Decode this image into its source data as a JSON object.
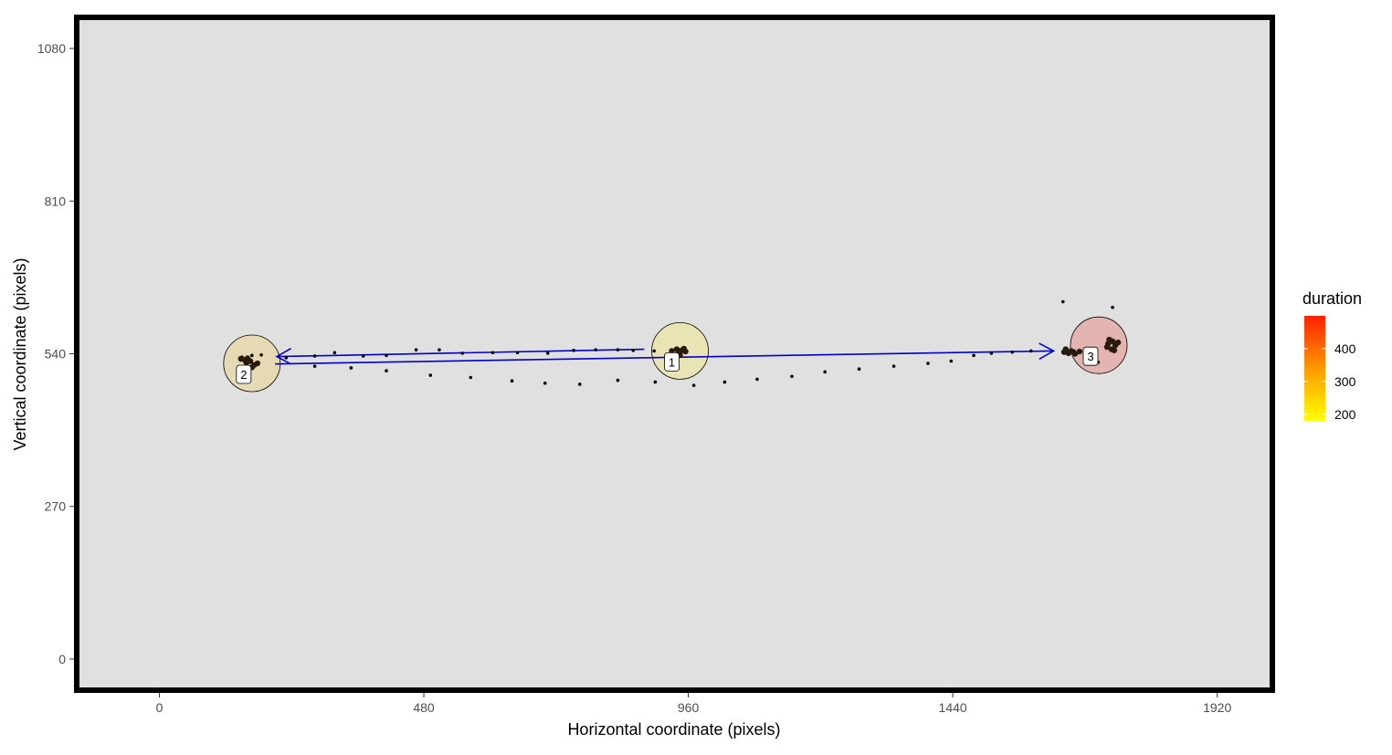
{
  "chart_data": {
    "type": "scatter",
    "title": "",
    "xlabel": "Horizontal coordinate (pixels)",
    "ylabel": "Vertical coordinate (pixels)",
    "xlim": [
      -150,
      2020
    ],
    "ylim": [
      -55,
      1135
    ],
    "x_ticks": [
      0,
      480,
      960,
      1440,
      1920
    ],
    "y_ticks": [
      0,
      270,
      540,
      810,
      1080
    ],
    "grid": false,
    "background": "#e0e0e0",
    "legend": {
      "title": "duration",
      "placement": "right",
      "min": 180,
      "max": 500,
      "ticks": [
        200,
        300,
        400
      ],
      "color_low": "#ffff00",
      "color_high": "#ff2000"
    },
    "fixations": [
      {
        "label": "1",
        "x": 945,
        "y": 545,
        "duration": 255,
        "fill": "#e8e4b4"
      },
      {
        "label": "2",
        "x": 168,
        "y": 523,
        "duration": 275,
        "fill": "#e6dab4"
      },
      {
        "label": "3",
        "x": 1705,
        "y": 555,
        "duration": 480,
        "fill": "#e4b4b0"
      }
    ],
    "saccades": [
      {
        "from": 1,
        "to": 2,
        "x1": 880,
        "y1": 548,
        "x2": 213,
        "y2": 535,
        "color": "#0000cc"
      },
      {
        "from": 2,
        "to": 3,
        "x1": 210,
        "y1": 522,
        "x2": 1623,
        "y2": 545,
        "color": "#0000cc"
      }
    ],
    "points": [
      {
        "x": 230,
        "y": 533
      },
      {
        "x": 282,
        "y": 536
      },
      {
        "x": 282,
        "y": 518
      },
      {
        "x": 318,
        "y": 542
      },
      {
        "x": 348,
        "y": 515
      },
      {
        "x": 370,
        "y": 536
      },
      {
        "x": 412,
        "y": 537
      },
      {
        "x": 412,
        "y": 510
      },
      {
        "x": 466,
        "y": 547
      },
      {
        "x": 492,
        "y": 502
      },
      {
        "x": 508,
        "y": 547
      },
      {
        "x": 550,
        "y": 541
      },
      {
        "x": 565,
        "y": 498
      },
      {
        "x": 605,
        "y": 542
      },
      {
        "x": 640,
        "y": 492
      },
      {
        "x": 650,
        "y": 542
      },
      {
        "x": 700,
        "y": 488
      },
      {
        "x": 705,
        "y": 541
      },
      {
        "x": 752,
        "y": 546
      },
      {
        "x": 763,
        "y": 486
      },
      {
        "x": 792,
        "y": 547
      },
      {
        "x": 832,
        "y": 547
      },
      {
        "x": 832,
        "y": 493
      },
      {
        "x": 860,
        "y": 546
      },
      {
        "x": 898,
        "y": 545
      },
      {
        "x": 900,
        "y": 490
      },
      {
        "x": 970,
        "y": 484
      },
      {
        "x": 1026,
        "y": 490
      },
      {
        "x": 1085,
        "y": 495
      },
      {
        "x": 1148,
        "y": 500
      },
      {
        "x": 1208,
        "y": 508
      },
      {
        "x": 1270,
        "y": 513
      },
      {
        "x": 1333,
        "y": 518
      },
      {
        "x": 1395,
        "y": 523
      },
      {
        "x": 1437,
        "y": 527
      },
      {
        "x": 1478,
        "y": 537
      },
      {
        "x": 1510,
        "y": 541
      },
      {
        "x": 1548,
        "y": 543
      },
      {
        "x": 1582,
        "y": 545
      },
      {
        "x": 1640,
        "y": 632
      },
      {
        "x": 1730,
        "y": 622
      },
      {
        "x": 1682,
        "y": 542
      },
      {
        "x": 1704,
        "y": 525
      },
      {
        "x": 1660,
        "y": 545
      },
      {
        "x": 168,
        "y": 537
      },
      {
        "x": 185,
        "y": 538
      },
      {
        "x": 150,
        "y": 534
      }
    ],
    "cluster_points": [
      {
        "x": 948,
        "y": 546
      },
      {
        "x": 942,
        "y": 542
      },
      {
        "x": 952,
        "y": 549
      },
      {
        "x": 939,
        "y": 548
      },
      {
        "x": 955,
        "y": 544
      },
      {
        "x": 945,
        "y": 538
      },
      {
        "x": 930,
        "y": 545
      },
      {
        "x": 148,
        "y": 531
      },
      {
        "x": 155,
        "y": 529
      },
      {
        "x": 160,
        "y": 532
      },
      {
        "x": 165,
        "y": 527
      },
      {
        "x": 172,
        "y": 520
      },
      {
        "x": 168,
        "y": 516
      },
      {
        "x": 178,
        "y": 523
      },
      {
        "x": 158,
        "y": 524
      },
      {
        "x": 1722,
        "y": 558
      },
      {
        "x": 1730,
        "y": 562
      },
      {
        "x": 1735,
        "y": 555
      },
      {
        "x": 1728,
        "y": 548
      },
      {
        "x": 1720,
        "y": 552
      },
      {
        "x": 1740,
        "y": 560
      },
      {
        "x": 1724,
        "y": 565
      },
      {
        "x": 1733,
        "y": 546
      },
      {
        "x": 1645,
        "y": 548
      },
      {
        "x": 1650,
        "y": 541
      },
      {
        "x": 1655,
        "y": 545
      },
      {
        "x": 1642,
        "y": 543
      },
      {
        "x": 1662,
        "y": 540
      },
      {
        "x": 1670,
        "y": 544
      }
    ]
  }
}
